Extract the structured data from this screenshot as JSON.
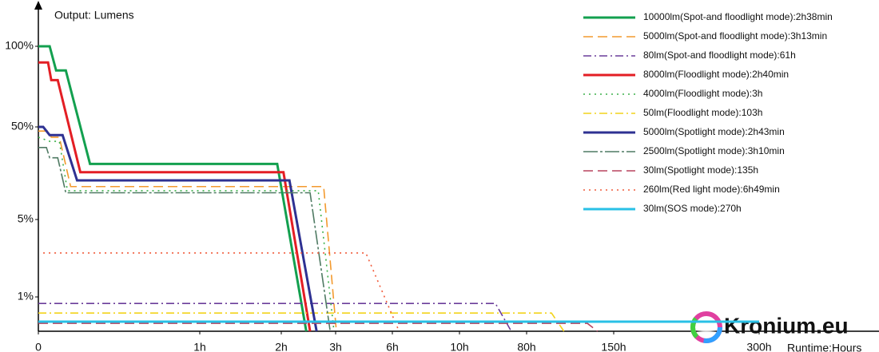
{
  "chart_data": {
    "type": "line",
    "title": "Output: Lumens",
    "x_label": "Runtime:Hours",
    "watermark": "Kronium.eu",
    "legend_loc": "upper right",
    "xlim": [
      0,
      300
    ],
    "xticks": [
      0,
      {
        "value": 1,
        "label": "1h"
      },
      {
        "value": 2,
        "label": "2h"
      },
      {
        "value": 3,
        "label": "3h"
      },
      {
        "value": 6,
        "label": "6h"
      },
      {
        "value": 10,
        "label": "10h"
      },
      {
        "value": 80,
        "label": "80h"
      },
      {
        "value": 150,
        "label": "150h"
      },
      {
        "value": 300,
        "label": "300h"
      }
    ],
    "ylim": [
      0,
      100
    ],
    "yticks": [
      {
        "value": 1,
        "label": "1%"
      },
      {
        "value": 5,
        "label": "5%"
      },
      {
        "value": 50,
        "label": "50%"
      },
      {
        "value": 100,
        "label": "100%"
      }
    ],
    "series": [
      {
        "name": "10000lm(Spot-and floodlight mode):2h38min",
        "color": "#13a04f",
        "dash": "solid",
        "x": [
          0,
          0.07,
          0.11,
          0.17,
          0.32,
          1.95,
          2.46
        ],
        "values": [
          100,
          100,
          85,
          85,
          32,
          32,
          0
        ]
      },
      {
        "name": "5000lm(Spot-and floodlight mode):3h13min",
        "color": "#f39a2e",
        "dash": "dashed",
        "x": [
          0,
          0.06,
          0.08,
          0.13,
          0.2,
          2.78,
          3.04
        ],
        "values": [
          48,
          48,
          45,
          45,
          21,
          21,
          0
        ]
      },
      {
        "name": "80lm(Spot-and floodlight mode):61h",
        "color": "#6a3d9a",
        "dash": "dashdot",
        "x": [
          0,
          47.5,
          64
        ],
        "values": [
          0.81,
          0.81,
          0
        ]
      },
      {
        "name": "8000lm(Floodlight mode):2h40min",
        "color": "#e31e24",
        "dash": "solid",
        "x": [
          0,
          0.06,
          0.08,
          0.12,
          0.26,
          2.04,
          2.53
        ],
        "values": [
          90,
          90,
          79,
          79,
          28,
          28,
          0
        ]
      },
      {
        "name": "4000lm(Floodlight mode):3h",
        "color": "#3cb04a",
        "dash": "dotted",
        "x": [
          0,
          0.07,
          0.13,
          0.18,
          2.68,
          2.97
        ],
        "values": [
          45,
          43,
          43,
          19,
          19,
          0
        ]
      },
      {
        "name": "50lm(Floodlight mode):103h",
        "color": "#f2d31b",
        "dash": "dashdot",
        "x": [
          0,
          100,
          110
        ],
        "values": [
          0.53,
          0.53,
          0
        ]
      },
      {
        "name": "5000lm(Spotlight mode):2h43min",
        "color": "#2e3192",
        "dash": "solid",
        "x": [
          0,
          0.03,
          0.07,
          0.15,
          0.24,
          2.15,
          2.65
        ],
        "values": [
          50,
          50,
          46,
          46,
          24,
          24,
          0
        ]
      },
      {
        "name": "2500lm(Spotlight mode):3h10min",
        "color": "#4f7a63",
        "dash": "longdash",
        "x": [
          0,
          0.05,
          0.07,
          0.12,
          0.17,
          2.53,
          2.9
        ],
        "values": [
          40,
          40,
          35,
          35,
          18,
          18,
          0
        ]
      },
      {
        "name": "30lm(Spotlight mode):135h",
        "color": "#b8435e",
        "dash": "dashed",
        "x": [
          0,
          128.8,
          137
        ],
        "values": [
          0.23,
          0.23,
          0
        ]
      },
      {
        "name": "260lm(Red light mode):6h49min",
        "color": "#f15a3a",
        "dash": "dotted",
        "x": [
          0.03,
          4.6,
          6.4
        ],
        "values": [
          3.27,
          3.27,
          0
        ]
      },
      {
        "name": "30lm(SOS mode):270h",
        "color": "#29c0e6",
        "dash": "solid",
        "x": [
          0,
          300
        ],
        "values": [
          0.28,
          0.28
        ]
      }
    ]
  }
}
